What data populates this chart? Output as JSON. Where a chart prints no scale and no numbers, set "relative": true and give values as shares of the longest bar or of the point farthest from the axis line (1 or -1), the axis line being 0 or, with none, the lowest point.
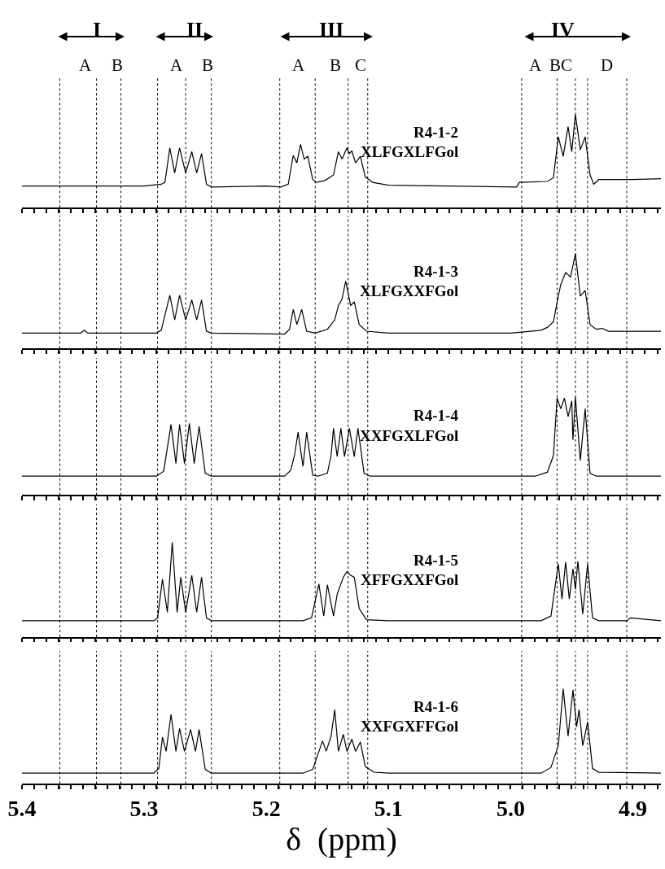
{
  "chart_data": [
    {
      "type": "line",
      "relative": true,
      "xlim": [
        5.4,
        4.877
      ],
      "tick_labels": false,
      "grid": false,
      "xticks": [
        5.4,
        {
          "value": 5.39,
          "label": null
        },
        {
          "value": 5.38,
          "label": null
        },
        {
          "value": 5.37,
          "label": null
        },
        {
          "value": 5.36,
          "label": null
        },
        {
          "value": 5.35,
          "label": null
        },
        {
          "value": 5.34,
          "label": null
        },
        {
          "value": 5.33,
          "label": null
        },
        {
          "value": 5.32,
          "label": null
        },
        {
          "value": 5.31,
          "label": null
        },
        5.3,
        {
          "value": 5.29,
          "label": null
        },
        {
          "value": 5.28,
          "label": null
        },
        {
          "value": 5.27,
          "label": null
        },
        {
          "value": 5.26,
          "label": null
        },
        {
          "value": 5.25,
          "label": null
        },
        {
          "value": 5.24,
          "label": null
        },
        {
          "value": 5.23,
          "label": null
        },
        {
          "value": 5.22,
          "label": null
        },
        {
          "value": 5.21,
          "label": null
        },
        5.2,
        {
          "value": 5.19,
          "label": null
        },
        {
          "value": 5.18,
          "label": null
        },
        {
          "value": 5.17,
          "label": null
        },
        {
          "value": 5.16,
          "label": null
        },
        {
          "value": 5.15,
          "label": null
        },
        {
          "value": 5.14,
          "label": null
        },
        {
          "value": 5.13,
          "label": null
        },
        {
          "value": 5.12,
          "label": null
        },
        {
          "value": 5.11,
          "label": null
        },
        5.1,
        {
          "value": 5.09,
          "label": null
        },
        {
          "value": 5.08,
          "label": null
        },
        {
          "value": 5.07,
          "label": null
        },
        {
          "value": 5.06,
          "label": null
        },
        {
          "value": 5.05,
          "label": null
        },
        {
          "value": 5.04,
          "label": null
        },
        {
          "value": 5.03,
          "label": null
        },
        {
          "value": 5.02,
          "label": null
        },
        {
          "value": 5.01,
          "label": null
        },
        5.0,
        {
          "value": 4.99,
          "label": null
        },
        {
          "value": 4.98,
          "label": null
        },
        {
          "value": 4.97,
          "label": null
        },
        {
          "value": 4.96,
          "label": null
        },
        {
          "value": 4.95,
          "label": null
        },
        {
          "value": 4.94,
          "label": null
        },
        {
          "value": 4.93,
          "label": null
        },
        {
          "value": 4.92,
          "label": null
        },
        {
          "value": 4.91,
          "label": null
        },
        4.9,
        {
          "value": 4.89,
          "label": null
        },
        {
          "value": 4.88,
          "label": null
        }
      ],
      "series": [
        {
          "color": "#000000",
          "x": [
            5.4,
            5.3,
            5.286,
            5.283,
            5.279,
            5.275,
            5.271,
            5.266,
            5.261,
            5.257,
            5.253,
            5.249,
            5.245,
            5.2,
            5.188,
            5.182,
            5.178,
            5.175,
            5.172,
            5.169,
            5.166,
            5.162,
            5.159,
            5.152,
            5.145,
            5.141,
            5.138,
            5.134,
            5.132,
            5.13,
            5.127,
            5.123,
            5.119,
            5.113,
            5.1,
            5.05,
            4.995,
            4.993,
            4.97,
            4.965,
            4.961,
            4.957,
            4.953,
            4.95,
            4.947,
            4.943,
            4.939,
            4.935,
            4.932,
            4.928,
            4.9,
            4.877
          ],
          "values": [
            0.23,
            0.23,
            0.25,
            0.27,
            0.64,
            0.37,
            0.64,
            0.37,
            0.6,
            0.37,
            0.58,
            0.25,
            0.22,
            0.23,
            0.22,
            0.25,
            0.56,
            0.48,
            0.68,
            0.52,
            0.55,
            0.3,
            0.27,
            0.29,
            0.35,
            0.6,
            0.52,
            0.64,
            0.58,
            0.61,
            0.48,
            0.55,
            0.33,
            0.27,
            0.24,
            0.23,
            0.22,
            0.27,
            0.28,
            0.32,
            0.76,
            0.55,
            0.87,
            0.6,
            1.0,
            0.62,
            0.76,
            0.35,
            0.25,
            0.3,
            0.3,
            0.31
          ]
        }
      ],
      "ref_lines": [
        {
          "axis": "x",
          "value": 5.369,
          "line_style": "dotted"
        },
        {
          "axis": "x",
          "value": 5.339,
          "line_style": "dotted"
        },
        {
          "axis": "x",
          "value": 5.319,
          "line_style": "dotted"
        },
        {
          "axis": "x",
          "value": 5.289,
          "line_style": "dotted"
        },
        {
          "axis": "x",
          "value": 5.266,
          "line_style": "dotted"
        },
        {
          "axis": "x",
          "value": 5.245,
          "line_style": "dotted"
        },
        {
          "axis": "x",
          "value": 5.189,
          "line_style": "dotted"
        },
        {
          "axis": "x",
          "value": 5.16,
          "line_style": "dotted"
        },
        {
          "axis": "x",
          "value": 5.133,
          "line_style": "dotted"
        },
        {
          "axis": "x",
          "value": 5.117,
          "line_style": "dotted"
        },
        {
          "axis": "x",
          "value": 4.991,
          "line_style": "dotted"
        },
        {
          "axis": "x",
          "value": 4.962,
          "line_style": "dotted"
        },
        {
          "axis": "x",
          "value": 4.947,
          "line_style": "dotted"
        },
        {
          "axis": "x",
          "value": 4.937,
          "line_style": "dotted"
        },
        {
          "axis": "x",
          "value": 4.905,
          "line_style": "dotted"
        }
      ],
      "annotations": [
        "R4-1-2",
        "XLFGXLFGol",
        "I",
        "II",
        "III",
        "IV",
        "A",
        "B",
        "A",
        "B",
        "A",
        "B",
        "C",
        "A",
        "BC",
        "D"
      ]
    },
    {
      "type": "line",
      "relative": true,
      "xlim": [
        5.4,
        4.877
      ],
      "tick_labels": false,
      "grid": false,
      "xticks": [
        5.4,
        {
          "value": 5.39,
          "label": null
        },
        {
          "value": 5.38,
          "label": null
        },
        {
          "value": 5.37,
          "label": null
        },
        {
          "value": 5.36,
          "label": null
        },
        {
          "value": 5.35,
          "label": null
        },
        {
          "value": 5.34,
          "label": null
        },
        {
          "value": 5.33,
          "label": null
        },
        {
          "value": 5.32,
          "label": null
        },
        {
          "value": 5.31,
          "label": null
        },
        5.3,
        {
          "value": 5.29,
          "label": null
        },
        {
          "value": 5.28,
          "label": null
        },
        {
          "value": 5.27,
          "label": null
        },
        {
          "value": 5.26,
          "label": null
        },
        {
          "value": 5.25,
          "label": null
        },
        {
          "value": 5.24,
          "label": null
        },
        {
          "value": 5.23,
          "label": null
        },
        {
          "value": 5.22,
          "label": null
        },
        {
          "value": 5.21,
          "label": null
        },
        5.2,
        {
          "value": 5.19,
          "label": null
        },
        {
          "value": 5.18,
          "label": null
        },
        {
          "value": 5.17,
          "label": null
        },
        {
          "value": 5.16,
          "label": null
        },
        {
          "value": 5.15,
          "label": null
        },
        {
          "value": 5.14,
          "label": null
        },
        {
          "value": 5.13,
          "label": null
        },
        {
          "value": 5.12,
          "label": null
        },
        {
          "value": 5.11,
          "label": null
        },
        5.1,
        {
          "value": 5.09,
          "label": null
        },
        {
          "value": 5.08,
          "label": null
        },
        {
          "value": 5.07,
          "label": null
        },
        {
          "value": 5.06,
          "label": null
        },
        {
          "value": 5.05,
          "label": null
        },
        {
          "value": 5.04,
          "label": null
        },
        {
          "value": 5.03,
          "label": null
        },
        {
          "value": 5.02,
          "label": null
        },
        {
          "value": 5.01,
          "label": null
        },
        5.0,
        {
          "value": 4.99,
          "label": null
        },
        {
          "value": 4.98,
          "label": null
        },
        {
          "value": 4.97,
          "label": null
        },
        {
          "value": 4.96,
          "label": null
        },
        {
          "value": 4.95,
          "label": null
        },
        {
          "value": 4.94,
          "label": null
        },
        {
          "value": 4.93,
          "label": null
        },
        {
          "value": 4.92,
          "label": null
        },
        {
          "value": 4.91,
          "label": null
        },
        4.9,
        {
          "value": 4.89,
          "label": null
        },
        {
          "value": 4.88,
          "label": null
        }
      ],
      "series": [
        {
          "color": "#000000",
          "x": [
            5.4,
            5.352,
            5.349,
            5.346,
            5.29,
            5.286,
            5.279,
            5.275,
            5.271,
            5.266,
            5.261,
            5.257,
            5.253,
            5.249,
            5.245,
            5.185,
            5.181,
            5.178,
            5.175,
            5.171,
            5.167,
            5.16,
            5.15,
            5.144,
            5.141,
            5.138,
            5.135,
            5.131,
            5.128,
            5.124,
            5.118,
            5.1,
            5.0,
            4.975,
            4.97,
            4.965,
            4.961,
            4.959,
            4.955,
            4.951,
            4.947,
            4.943,
            4.939,
            4.935,
            4.93,
            4.925,
            4.92,
            4.877
          ],
          "values": [
            0.16,
            0.16,
            0.19,
            0.16,
            0.16,
            0.19,
            0.56,
            0.3,
            0.56,
            0.3,
            0.51,
            0.3,
            0.51,
            0.18,
            0.16,
            0.15,
            0.2,
            0.41,
            0.25,
            0.41,
            0.18,
            0.16,
            0.2,
            0.3,
            0.45,
            0.52,
            0.71,
            0.45,
            0.49,
            0.25,
            0.18,
            0.16,
            0.16,
            0.19,
            0.22,
            0.28,
            0.55,
            0.67,
            0.8,
            0.75,
            1.0,
            0.55,
            0.61,
            0.25,
            0.2,
            0.21,
            0.18,
            0.18
          ]
        }
      ],
      "ref_lines": [
        {
          "axis": "x",
          "value": 5.369,
          "line_style": "dotted"
        },
        {
          "axis": "x",
          "value": 5.339,
          "line_style": "dotted"
        },
        {
          "axis": "x",
          "value": 5.319,
          "line_style": "dotted"
        },
        {
          "axis": "x",
          "value": 5.289,
          "line_style": "dotted"
        },
        {
          "axis": "x",
          "value": 5.266,
          "line_style": "dotted"
        },
        {
          "axis": "x",
          "value": 5.245,
          "line_style": "dotted"
        },
        {
          "axis": "x",
          "value": 5.189,
          "line_style": "dotted"
        },
        {
          "axis": "x",
          "value": 5.16,
          "line_style": "dotted"
        },
        {
          "axis": "x",
          "value": 5.133,
          "line_style": "dotted"
        },
        {
          "axis": "x",
          "value": 5.117,
          "line_style": "dotted"
        },
        {
          "axis": "x",
          "value": 4.991,
          "line_style": "dotted"
        },
        {
          "axis": "x",
          "value": 4.962,
          "line_style": "dotted"
        },
        {
          "axis": "x",
          "value": 4.947,
          "line_style": "dotted"
        },
        {
          "axis": "x",
          "value": 4.937,
          "line_style": "dotted"
        },
        {
          "axis": "x",
          "value": 4.905,
          "line_style": "dotted"
        }
      ],
      "annotations": [
        "R4-1-3",
        "XLFGXXFGol"
      ]
    },
    {
      "type": "line",
      "relative": true,
      "xlim": [
        5.4,
        4.877
      ],
      "tick_labels": false,
      "grid": false,
      "xticks": [
        5.4,
        {
          "value": 5.39,
          "label": null
        },
        {
          "value": 5.38,
          "label": null
        },
        {
          "value": 5.37,
          "label": null
        },
        {
          "value": 5.36,
          "label": null
        },
        {
          "value": 5.35,
          "label": null
        },
        {
          "value": 5.34,
          "label": null
        },
        {
          "value": 5.33,
          "label": null
        },
        {
          "value": 5.32,
          "label": null
        },
        {
          "value": 5.31,
          "label": null
        },
        5.3,
        {
          "value": 5.29,
          "label": null
        },
        {
          "value": 5.28,
          "label": null
        },
        {
          "value": 5.27,
          "label": null
        },
        {
          "value": 5.26,
          "label": null
        },
        {
          "value": 5.25,
          "label": null
        },
        {
          "value": 5.24,
          "label": null
        },
        {
          "value": 5.23,
          "label": null
        },
        {
          "value": 5.22,
          "label": null
        },
        {
          "value": 5.21,
          "label": null
        },
        5.2,
        {
          "value": 5.19,
          "label": null
        },
        {
          "value": 5.18,
          "label": null
        },
        {
          "value": 5.17,
          "label": null
        },
        {
          "value": 5.16,
          "label": null
        },
        {
          "value": 5.15,
          "label": null
        },
        {
          "value": 5.14,
          "label": null
        },
        {
          "value": 5.13,
          "label": null
        },
        {
          "value": 5.12,
          "label": null
        },
        {
          "value": 5.11,
          "label": null
        },
        5.1,
        {
          "value": 5.09,
          "label": null
        },
        {
          "value": 5.08,
          "label": null
        },
        {
          "value": 5.07,
          "label": null
        },
        {
          "value": 5.06,
          "label": null
        },
        {
          "value": 5.05,
          "label": null
        },
        {
          "value": 5.04,
          "label": null
        },
        {
          "value": 5.03,
          "label": null
        },
        {
          "value": 5.02,
          "label": null
        },
        {
          "value": 5.01,
          "label": null
        },
        5.0,
        {
          "value": 4.99,
          "label": null
        },
        {
          "value": 4.98,
          "label": null
        },
        {
          "value": 4.97,
          "label": null
        },
        {
          "value": 4.96,
          "label": null
        },
        {
          "value": 4.95,
          "label": null
        },
        {
          "value": 4.94,
          "label": null
        },
        {
          "value": 4.93,
          "label": null
        },
        {
          "value": 4.92,
          "label": null
        },
        {
          "value": 4.91,
          "label": null
        },
        4.9,
        {
          "value": 4.89,
          "label": null
        },
        {
          "value": 4.88,
          "label": null
        }
      ],
      "series": [
        {
          "color": "#000000",
          "x": [
            5.4,
            5.29,
            5.284,
            5.278,
            5.274,
            5.271,
            5.267,
            5.263,
            5.259,
            5.255,
            5.25,
            5.245,
            5.185,
            5.18,
            5.177,
            5.174,
            5.17,
            5.167,
            5.162,
            5.158,
            5.15,
            5.147,
            5.145,
            5.142,
            5.139,
            5.136,
            5.132,
            5.128,
            5.125,
            5.12,
            5.115,
            5.1,
            4.98,
            4.97,
            4.965,
            4.962,
            4.959,
            4.956,
            4.953,
            4.95,
            4.949,
            4.947,
            4.943,
            4.939,
            4.935,
            4.93,
            4.877
          ],
          "values": [
            0.19,
            0.19,
            0.24,
            0.72,
            0.32,
            0.72,
            0.32,
            0.73,
            0.32,
            0.7,
            0.22,
            0.19,
            0.19,
            0.25,
            0.4,
            0.64,
            0.29,
            0.64,
            0.2,
            0.19,
            0.22,
            0.4,
            0.68,
            0.39,
            0.68,
            0.39,
            0.68,
            0.39,
            0.68,
            0.22,
            0.19,
            0.19,
            0.19,
            0.23,
            0.4,
            0.99,
            0.88,
            0.99,
            0.8,
            0.96,
            0.56,
            1.0,
            0.35,
            0.88,
            0.22,
            0.19,
            0.19
          ]
        }
      ],
      "ref_lines": [
        {
          "axis": "x",
          "value": 5.369,
          "line_style": "dotted"
        },
        {
          "axis": "x",
          "value": 5.339,
          "line_style": "dotted"
        },
        {
          "axis": "x",
          "value": 5.319,
          "line_style": "dotted"
        },
        {
          "axis": "x",
          "value": 5.289,
          "line_style": "dotted"
        },
        {
          "axis": "x",
          "value": 5.266,
          "line_style": "dotted"
        },
        {
          "axis": "x",
          "value": 5.245,
          "line_style": "dotted"
        },
        {
          "axis": "x",
          "value": 5.189,
          "line_style": "dotted"
        },
        {
          "axis": "x",
          "value": 5.16,
          "line_style": "dotted"
        },
        {
          "axis": "x",
          "value": 5.133,
          "line_style": "dotted"
        },
        {
          "axis": "x",
          "value": 5.117,
          "line_style": "dotted"
        },
        {
          "axis": "x",
          "value": 4.991,
          "line_style": "dotted"
        },
        {
          "axis": "x",
          "value": 4.962,
          "line_style": "dotted"
        },
        {
          "axis": "x",
          "value": 4.947,
          "line_style": "dotted"
        },
        {
          "axis": "x",
          "value": 4.937,
          "line_style": "dotted"
        },
        {
          "axis": "x",
          "value": 4.905,
          "line_style": "dotted"
        }
      ],
      "annotations": [
        "R4-1-4",
        "XXFGXLFGol"
      ]
    },
    {
      "type": "line",
      "relative": true,
      "xlim": [
        5.4,
        4.877
      ],
      "tick_labels": false,
      "grid": false,
      "xticks": [
        5.4,
        {
          "value": 5.39,
          "label": null
        },
        {
          "value": 5.38,
          "label": null
        },
        {
          "value": 5.37,
          "label": null
        },
        {
          "value": 5.36,
          "label": null
        },
        {
          "value": 5.35,
          "label": null
        },
        {
          "value": 5.34,
          "label": null
        },
        {
          "value": 5.33,
          "label": null
        },
        {
          "value": 5.32,
          "label": null
        },
        {
          "value": 5.31,
          "label": null
        },
        5.3,
        {
          "value": 5.29,
          "label": null
        },
        {
          "value": 5.28,
          "label": null
        },
        {
          "value": 5.27,
          "label": null
        },
        {
          "value": 5.26,
          "label": null
        },
        {
          "value": 5.25,
          "label": null
        },
        {
          "value": 5.24,
          "label": null
        },
        {
          "value": 5.23,
          "label": null
        },
        {
          "value": 5.22,
          "label": null
        },
        {
          "value": 5.21,
          "label": null
        },
        5.2,
        {
          "value": 5.19,
          "label": null
        },
        {
          "value": 5.18,
          "label": null
        },
        {
          "value": 5.17,
          "label": null
        },
        {
          "value": 5.16,
          "label": null
        },
        {
          "value": 5.15,
          "label": null
        },
        {
          "value": 5.14,
          "label": null
        },
        {
          "value": 5.13,
          "label": null
        },
        {
          "value": 5.12,
          "label": null
        },
        {
          "value": 5.11,
          "label": null
        },
        5.1,
        {
          "value": 5.09,
          "label": null
        },
        {
          "value": 5.08,
          "label": null
        },
        {
          "value": 5.07,
          "label": null
        },
        {
          "value": 5.06,
          "label": null
        },
        {
          "value": 5.05,
          "label": null
        },
        {
          "value": 5.04,
          "label": null
        },
        {
          "value": 5.03,
          "label": null
        },
        {
          "value": 5.02,
          "label": null
        },
        {
          "value": 5.01,
          "label": null
        },
        5.0,
        {
          "value": 4.99,
          "label": null
        },
        {
          "value": 4.98,
          "label": null
        },
        {
          "value": 4.97,
          "label": null
        },
        {
          "value": 4.96,
          "label": null
        },
        {
          "value": 4.95,
          "label": null
        },
        {
          "value": 4.94,
          "label": null
        },
        {
          "value": 4.93,
          "label": null
        },
        {
          "value": 4.92,
          "label": null
        },
        {
          "value": 4.91,
          "label": null
        },
        4.9,
        {
          "value": 4.89,
          "label": null
        },
        {
          "value": 4.88,
          "label": null
        }
      ],
      "series": [
        {
          "color": "#000000",
          "x": [
            5.4,
            5.292,
            5.289,
            5.285,
            5.281,
            5.277,
            5.273,
            5.27,
            5.266,
            5.261,
            5.257,
            5.253,
            5.249,
            5.245,
            5.17,
            5.163,
            5.157,
            5.153,
            5.15,
            5.145,
            5.142,
            5.137,
            5.134,
            5.131,
            5.128,
            5.124,
            5.118,
            5.1,
            4.975,
            4.967,
            4.961,
            4.958,
            4.955,
            4.952,
            4.949,
            4.947,
            4.945,
            4.941,
            4.937,
            4.933,
            4.928,
            4.905,
            4.902,
            4.877
          ],
          "values": [
            0.17,
            0.17,
            0.2,
            0.61,
            0.26,
            1.0,
            0.26,
            0.63,
            0.26,
            0.65,
            0.26,
            0.63,
            0.2,
            0.17,
            0.17,
            0.2,
            0.56,
            0.22,
            0.55,
            0.22,
            0.45,
            0.63,
            0.69,
            0.65,
            0.63,
            0.3,
            0.18,
            0.17,
            0.17,
            0.22,
            0.77,
            0.4,
            0.79,
            0.4,
            0.72,
            0.5,
            0.8,
            0.24,
            0.77,
            0.2,
            0.17,
            0.17,
            0.2,
            0.17
          ]
        }
      ],
      "ref_lines": [
        {
          "axis": "x",
          "value": 5.369,
          "line_style": "dotted"
        },
        {
          "axis": "x",
          "value": 5.339,
          "line_style": "dotted"
        },
        {
          "axis": "x",
          "value": 5.319,
          "line_style": "dotted"
        },
        {
          "axis": "x",
          "value": 5.289,
          "line_style": "dotted"
        },
        {
          "axis": "x",
          "value": 5.266,
          "line_style": "dotted"
        },
        {
          "axis": "x",
          "value": 5.245,
          "line_style": "dotted"
        },
        {
          "axis": "x",
          "value": 5.189,
          "line_style": "dotted"
        },
        {
          "axis": "x",
          "value": 5.16,
          "line_style": "dotted"
        },
        {
          "axis": "x",
          "value": 5.133,
          "line_style": "dotted"
        },
        {
          "axis": "x",
          "value": 5.117,
          "line_style": "dotted"
        },
        {
          "axis": "x",
          "value": 4.991,
          "line_style": "dotted"
        },
        {
          "axis": "x",
          "value": 4.962,
          "line_style": "dotted"
        },
        {
          "axis": "x",
          "value": 4.947,
          "line_style": "dotted"
        },
        {
          "axis": "x",
          "value": 4.937,
          "line_style": "dotted"
        },
        {
          "axis": "x",
          "value": 4.905,
          "line_style": "dotted"
        }
      ],
      "annotations": [
        "R4-1-5",
        "XFFGXXFGol"
      ]
    },
    {
      "type": "line",
      "relative": true,
      "xlim": [
        5.4,
        4.877
      ],
      "tick_labels": "x",
      "grid": false,
      "xlabel": "δ  (ppm)",
      "xticks": [
        5.4,
        {
          "value": 5.39,
          "label": null
        },
        {
          "value": 5.38,
          "label": null
        },
        {
          "value": 5.37,
          "label": null
        },
        {
          "value": 5.36,
          "label": null
        },
        {
          "value": 5.35,
          "label": null
        },
        {
          "value": 5.34,
          "label": null
        },
        {
          "value": 5.33,
          "label": null
        },
        {
          "value": 5.32,
          "label": null
        },
        {
          "value": 5.31,
          "label": null
        },
        5.3,
        {
          "value": 5.29,
          "label": null
        },
        {
          "value": 5.28,
          "label": null
        },
        {
          "value": 5.27,
          "label": null
        },
        {
          "value": 5.26,
          "label": null
        },
        {
          "value": 5.25,
          "label": null
        },
        {
          "value": 5.24,
          "label": null
        },
        {
          "value": 5.23,
          "label": null
        },
        {
          "value": 5.22,
          "label": null
        },
        {
          "value": 5.21,
          "label": null
        },
        5.2,
        {
          "value": 5.19,
          "label": null
        },
        {
          "value": 5.18,
          "label": null
        },
        {
          "value": 5.17,
          "label": null
        },
        {
          "value": 5.16,
          "label": null
        },
        {
          "value": 5.15,
          "label": null
        },
        {
          "value": 5.14,
          "label": null
        },
        {
          "value": 5.13,
          "label": null
        },
        {
          "value": 5.12,
          "label": null
        },
        {
          "value": 5.11,
          "label": null
        },
        5.1,
        {
          "value": 5.09,
          "label": null
        },
        {
          "value": 5.08,
          "label": null
        },
        {
          "value": 5.07,
          "label": null
        },
        {
          "value": 5.06,
          "label": null
        },
        {
          "value": 5.05,
          "label": null
        },
        {
          "value": 5.04,
          "label": null
        },
        {
          "value": 5.03,
          "label": null
        },
        {
          "value": 5.02,
          "label": null
        },
        {
          "value": 5.01,
          "label": null
        },
        {
          "value": 5.0,
          "label": "5.0"
        },
        {
          "value": 4.99,
          "label": null
        },
        {
          "value": 4.98,
          "label": null
        },
        {
          "value": 4.97,
          "label": null
        },
        {
          "value": 4.96,
          "label": null
        },
        {
          "value": 4.95,
          "label": null
        },
        {
          "value": 4.94,
          "label": null
        },
        {
          "value": 4.93,
          "label": null
        },
        {
          "value": 4.92,
          "label": null
        },
        {
          "value": 4.91,
          "label": null
        },
        4.9,
        {
          "value": 4.89,
          "label": null
        },
        {
          "value": 4.88,
          "label": null
        }
      ],
      "series": [
        {
          "color": "#000000",
          "x": [
            5.4,
            5.292,
            5.288,
            5.285,
            5.282,
            5.278,
            5.274,
            5.271,
            5.267,
            5.262,
            5.258,
            5.255,
            5.25,
            5.245,
            5.17,
            5.162,
            5.158,
            5.154,
            5.151,
            5.147,
            5.144,
            5.141,
            5.137,
            5.134,
            5.13,
            5.127,
            5.123,
            5.119,
            5.112,
            5.1,
            4.975,
            4.967,
            4.961,
            4.957,
            4.953,
            4.949,
            4.946,
            4.944,
            4.941,
            4.937,
            4.933,
            4.928,
            4.877
          ],
          "values": [
            0.11,
            0.11,
            0.16,
            0.49,
            0.34,
            0.73,
            0.34,
            0.58,
            0.34,
            0.57,
            0.34,
            0.57,
            0.15,
            0.11,
            0.11,
            0.15,
            0.3,
            0.45,
            0.34,
            0.5,
            0.78,
            0.34,
            0.52,
            0.34,
            0.47,
            0.34,
            0.44,
            0.18,
            0.12,
            0.11,
            0.11,
            0.17,
            0.4,
            1.0,
            0.5,
            0.99,
            0.6,
            0.78,
            0.4,
            0.65,
            0.16,
            0.12,
            0.11
          ]
        }
      ],
      "ref_lines": [
        {
          "axis": "x",
          "value": 5.369,
          "line_style": "dotted"
        },
        {
          "axis": "x",
          "value": 5.339,
          "line_style": "dotted"
        },
        {
          "axis": "x",
          "value": 5.319,
          "line_style": "dotted"
        },
        {
          "axis": "x",
          "value": 5.289,
          "line_style": "dotted"
        },
        {
          "axis": "x",
          "value": 5.266,
          "line_style": "dotted"
        },
        {
          "axis": "x",
          "value": 5.245,
          "line_style": "dotted"
        },
        {
          "axis": "x",
          "value": 5.189,
          "line_style": "dotted"
        },
        {
          "axis": "x",
          "value": 5.16,
          "line_style": "dotted"
        },
        {
          "axis": "x",
          "value": 5.133,
          "line_style": "dotted"
        },
        {
          "axis": "x",
          "value": 5.117,
          "line_style": "dotted"
        },
        {
          "axis": "x",
          "value": 4.991,
          "line_style": "dotted"
        },
        {
          "axis": "x",
          "value": 4.962,
          "line_style": "dotted"
        },
        {
          "axis": "x",
          "value": 4.947,
          "line_style": "dotted"
        },
        {
          "axis": "x",
          "value": 4.937,
          "line_style": "dotted"
        },
        {
          "axis": "x",
          "value": 4.905,
          "line_style": "dotted"
        }
      ],
      "annotations": [
        "R4-1-6",
        "XXFGXFFGol"
      ]
    }
  ]
}
